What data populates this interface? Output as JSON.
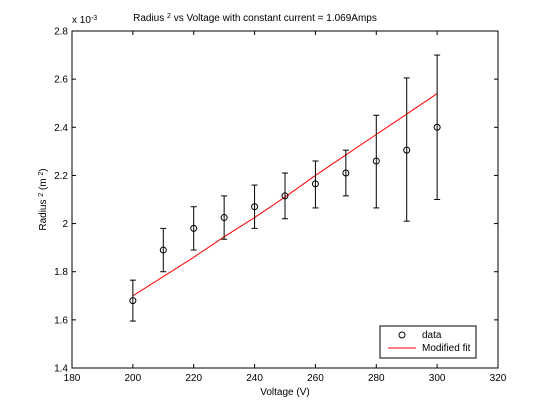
{
  "chart_data": {
    "type": "scatter",
    "title": {
      "pre": "Radius ",
      "sup": "2",
      "post": " vs Voltage with constant current = 1.069Amps"
    },
    "xlabel": "Voltage (V)",
    "ylabel": {
      "pre": "Radius ",
      "sup1": "2",
      "mid": " (m ",
      "sup2": "2",
      "post": ")"
    },
    "y_multiplier": {
      "pre": "x 10",
      "sup": "-3"
    },
    "xlim": [
      180,
      320
    ],
    "ylim": [
      1.4,
      2.8
    ],
    "xticks": [
      180,
      200,
      220,
      240,
      260,
      280,
      300,
      320
    ],
    "yticks": [
      1.4,
      1.6,
      1.8,
      2.0,
      2.2,
      2.4,
      2.6,
      2.8
    ],
    "xtick_labels": [
      "180",
      "200",
      "220",
      "240",
      "260",
      "280",
      "300",
      "320"
    ],
    "ytick_labels": [
      "1.4",
      "1.6",
      "1.8",
      "2",
      "2.2",
      "2.4",
      "2.6",
      "2.8"
    ],
    "grid": false,
    "legend_position": "bottom-right",
    "series": [
      {
        "name": "data",
        "style": "circle-markers-with-errorbars",
        "color": "#000000",
        "x": [
          200,
          210,
          220,
          230,
          240,
          250,
          260,
          270,
          280,
          290,
          300
        ],
        "y": [
          1.68,
          1.89,
          1.98,
          2.025,
          2.07,
          2.115,
          2.165,
          2.21,
          2.26,
          2.305,
          2.4
        ],
        "err_low": [
          0.085,
          0.09,
          0.09,
          0.09,
          0.09,
          0.095,
          0.1,
          0.095,
          0.195,
          0.295,
          0.3
        ],
        "err_high": [
          0.085,
          0.09,
          0.09,
          0.09,
          0.09,
          0.095,
          0.095,
          0.095,
          0.19,
          0.3,
          0.3
        ]
      },
      {
        "name": "Modified fit",
        "style": "line",
        "color": "#ff0000",
        "x": [
          200,
          210,
          220,
          230,
          240,
          250,
          260,
          270,
          280,
          290,
          300
        ],
        "y": [
          1.7,
          1.78,
          1.86,
          1.945,
          2.025,
          2.11,
          2.2,
          2.285,
          2.37,
          2.455,
          2.54
        ]
      }
    ]
  }
}
